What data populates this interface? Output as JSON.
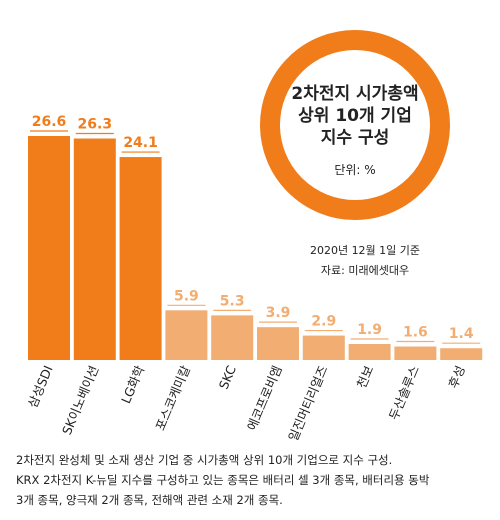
{
  "chart_data": {
    "type": "bar",
    "title": "2차전지 시가총액 상위 10개 기업 지수 구성",
    "title_lines": [
      "2차전지 시가총액",
      "상위 10개 기업",
      "지수 구성"
    ],
    "unit_label": "단위: %",
    "categories": [
      "삼성SDI",
      "SK이노베이션",
      "LG화학",
      "포스코케미칼",
      "SKC",
      "에코프로비엠",
      "일진머티리얼즈",
      "천보",
      "두산솔루스",
      "후성"
    ],
    "values": [
      26.6,
      26.3,
      24.1,
      5.9,
      5.3,
      3.9,
      2.9,
      1.9,
      1.6,
      1.4
    ],
    "value_labels": [
      "26.6",
      "26.3",
      "24.1",
      "5.9",
      "5.3",
      "3.9",
      "2.9",
      "1.9",
      "1.6",
      "1.4"
    ],
    "ylim": [
      0,
      26.6
    ],
    "colors": {
      "top": "#f07d1a",
      "rest": "#f2ad72",
      "ring": "#f07d1a"
    },
    "date_note": "2020년 12월 1일 기준",
    "source": "자료: 미래에셋대우"
  },
  "footnote": [
    "2차전지 완성체 및 소재 생산 기업 중 시가총액 상위 10개 기업으로 지수 구성.",
    "KRX 2차전지 K-뉴딜 지수를 구성하고 있는 종목은 배터리 셀 3개 종목, 배터리용 동박",
    "3개 종목, 양극재 2개 종목, 전해액 관련 소재 2개 종목."
  ]
}
